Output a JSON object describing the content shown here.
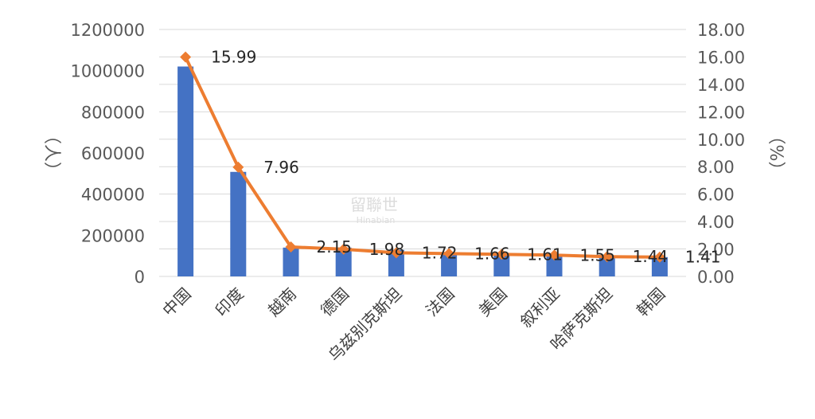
{
  "chart_data": {
    "type": "bar",
    "title": "",
    "categories": [
      "中国",
      "印度",
      "越南",
      "德国",
      "乌兹别克斯坦",
      "法国",
      "美国",
      "叙利亚",
      "哈萨克斯坦",
      "韩国"
    ],
    "series": [
      {
        "kind": "bar",
        "axis": "left",
        "color": "#4472c4",
        "values": [
          1020000,
          508000,
          140000,
          140000,
          129000,
          112000,
          108000,
          105000,
          101000,
          94000
        ]
      },
      {
        "kind": "line",
        "axis": "right",
        "color": "#ed7d31",
        "values": [
          15.99,
          7.96,
          2.15,
          1.98,
          1.72,
          1.66,
          1.61,
          1.55,
          1.44,
          1.41
        ],
        "labels": [
          "15.99",
          "7.96",
          "2.15",
          "1.98",
          "1.72",
          "1.66",
          "1.61",
          "1.55",
          "1.44",
          "1.41"
        ]
      }
    ],
    "y_left": {
      "label": "（人）",
      "ylim": [
        0,
        1200000
      ],
      "ticks": [
        "0",
        "200000",
        "400000",
        "600000",
        "800000",
        "1000000",
        "1200000"
      ]
    },
    "y_right": {
      "label": "（%）",
      "ylim": [
        0,
        18
      ],
      "ticks": [
        "0.00",
        "2.00",
        "4.00",
        "6.00",
        "8.00",
        "10.00",
        "12.00",
        "14.00",
        "16.00",
        "18.00"
      ]
    },
    "grid": true,
    "legend": "none"
  },
  "watermark": {
    "cn": "留聯世",
    "en": "Hinabian"
  },
  "colors": {
    "grid": "#d9d9d9",
    "bar": "#4472c4",
    "line": "#ed7d31"
  }
}
